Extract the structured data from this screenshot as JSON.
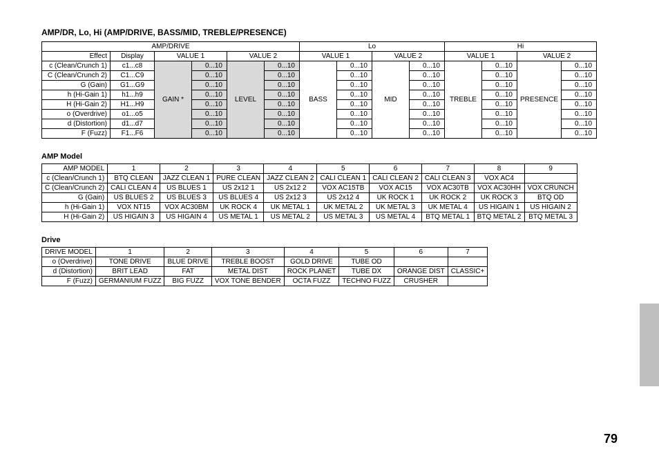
{
  "title": "AMP/DR, Lo, Hi (AMP/DRIVE, BASS/MID, TREBLE/PRESENCE)",
  "pageNumber": "79",
  "table1": {
    "groupHeaders": [
      "AMP/DRIVE",
      "Lo",
      "Hi"
    ],
    "subHeaders": {
      "effect": "Effect",
      "display": "Display",
      "v1": "VALUE 1",
      "v2": "VALUE 2"
    },
    "paramLabels": {
      "gain": "GAIN *",
      "level": "LEVEL",
      "bass": "BASS",
      "mid": "MID",
      "treble": "TREBLE",
      "presence": "PRESENCE"
    },
    "range": "0...10",
    "rows": [
      {
        "effect": "c (Clean/Crunch 1)",
        "display": "c1...c8"
      },
      {
        "effect": "C (Clean/Crunch 2)",
        "display": "C1...C9"
      },
      {
        "effect": "G (Gain)",
        "display": "G1...G9"
      },
      {
        "effect": "h (Hi-Gain 1)",
        "display": "h1...h9"
      },
      {
        "effect": "H (Hi-Gain 2)",
        "display": "H1...H9"
      },
      {
        "effect": "o (Overdrive)",
        "display": "o1...o5"
      },
      {
        "effect": "d (Distortion)",
        "display": "d1...d7"
      },
      {
        "effect": "F (Fuzz)",
        "display": "F1...F6"
      }
    ]
  },
  "ampModel": {
    "heading": "AMP Model",
    "header": [
      "AMP MODEL",
      "1",
      "2",
      "3",
      "4",
      "5",
      "6",
      "7",
      "8",
      "9"
    ],
    "rows": [
      [
        "c (Clean/Crunch 1)",
        "BTQ CLEAN",
        "JAZZ CLEAN 1",
        "PURE CLEAN",
        "JAZZ CLEAN 2",
        "CALI CLEAN 1",
        "CALI CLEAN 2",
        "CALI CLEAN 3",
        "VOX AC4",
        ""
      ],
      [
        "C (Clean/Crunch 2)",
        "CALI CLEAN 4",
        "US BLUES 1",
        "US 2x12 1",
        "US 2x12 2",
        "VOX AC15TB",
        "VOX AC15",
        "VOX AC30TB",
        "VOX AC30HH",
        "VOX CRUNCH"
      ],
      [
        "G (Gain)",
        "US BLUES 2",
        "US BLUES 3",
        "US BLUES 4",
        "US 2x12 3",
        "US 2x12 4",
        "UK ROCK 1",
        "UK ROCK 2",
        "UK ROCK 3",
        "BTQ OD"
      ],
      [
        "h (Hi-Gain 1)",
        "VOX NT15",
        "VOX AC30BM",
        "UK ROCK 4",
        "UK METAL 1",
        "UK METAL 2",
        "UK METAL 3",
        "UK METAL 4",
        "US HIGAIN 1",
        "US HIGAIN 2"
      ],
      [
        "H (Hi-Gain 2)",
        "US HIGAIN 3",
        "US HIGAIN 4",
        "US METAL 1",
        "US METAL 2",
        "US METAL 3",
        "US METAL 4",
        "BTQ METAL 1",
        "BTQ METAL 2",
        "BTQ METAL 3"
      ]
    ]
  },
  "drive": {
    "heading": "Drive",
    "header": [
      "DRIVE MODEL",
      "1",
      "2",
      "3",
      "4",
      "5",
      "6",
      "7"
    ],
    "rows": [
      [
        "o (Overdrive)",
        "TONE DRIVE",
        "BLUE DRIVE",
        "TREBLE BOOST",
        "GOLD DRIVE",
        "TUBE OD",
        "",
        ""
      ],
      [
        "d (Distortion)",
        "BRIT LEAD",
        "FAT",
        "METAL DIST",
        "ROCK PLANET",
        "TUBE DX",
        "ORANGE DIST",
        "CLASSIC+"
      ],
      [
        "F (Fuzz)",
        "GERMANIUM FUZZ",
        "BIG FUZZ",
        "VOX TONE BENDER",
        "OCTA FUZZ",
        "TECHNO FUZZ",
        "CRUSHER",
        ""
      ]
    ]
  }
}
